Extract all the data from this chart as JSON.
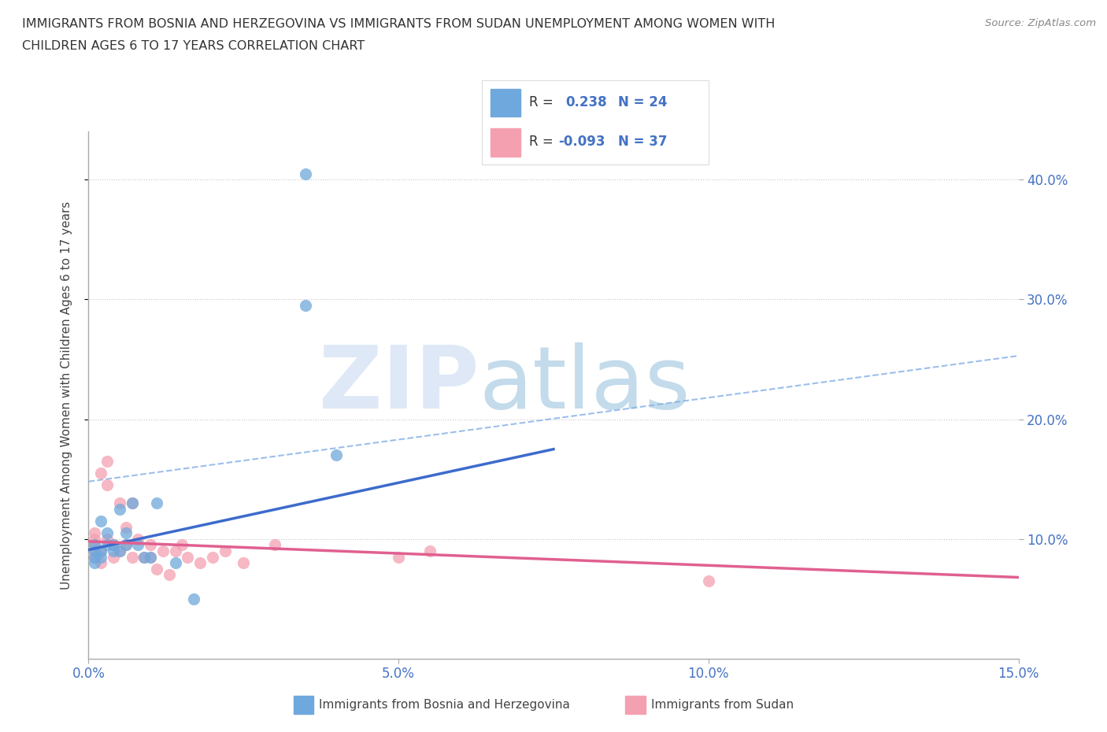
{
  "title_line1": "IMMIGRANTS FROM BOSNIA AND HERZEGOVINA VS IMMIGRANTS FROM SUDAN UNEMPLOYMENT AMONG WOMEN WITH",
  "title_line2": "CHILDREN AGES 6 TO 17 YEARS CORRELATION CHART",
  "source": "Source: ZipAtlas.com",
  "xlabel_bosnia": "Immigrants from Bosnia and Herzegovina",
  "xlabel_sudan": "Immigrants from Sudan",
  "ylabel": "Unemployment Among Women with Children Ages 6 to 17 years",
  "xlim": [
    0.0,
    0.15
  ],
  "ylim": [
    0.0,
    0.44
  ],
  "xticks": [
    0.0,
    0.05,
    0.1,
    0.15
  ],
  "yticks": [
    0.1,
    0.2,
    0.3,
    0.4
  ],
  "ytick_labels": [
    "10.0%",
    "20.0%",
    "30.0%",
    "40.0%"
  ],
  "xtick_labels": [
    "0.0%",
    "5.0%",
    "10.0%",
    "15.0%"
  ],
  "R_bosnia": 0.238,
  "N_bosnia": 24,
  "R_sudan": -0.093,
  "N_sudan": 37,
  "color_bosnia": "#6fa8dc",
  "color_sudan": "#f4a0b0",
  "color_bosnia_line": "#3d6bcc",
  "color_sudan_line": "#e06090",
  "color_ci_line": "#8ab4e8",
  "color_text_blue": "#4472c4",
  "background_color": "#ffffff",
  "grid_color": "#c8c8c8",
  "bosnia_x": [
    0.001,
    0.001,
    0.001,
    0.001,
    0.002,
    0.002,
    0.002,
    0.003,
    0.003,
    0.004,
    0.004,
    0.005,
    0.005,
    0.006,
    0.006,
    0.007,
    0.008,
    0.009,
    0.01,
    0.011,
    0.014,
    0.017,
    0.035,
    0.04
  ],
  "bosnia_y": [
    0.08,
    0.085,
    0.09,
    0.095,
    0.085,
    0.09,
    0.115,
    0.095,
    0.105,
    0.09,
    0.095,
    0.09,
    0.125,
    0.095,
    0.105,
    0.13,
    0.095,
    0.085,
    0.085,
    0.13,
    0.08,
    0.05,
    0.295,
    0.17
  ],
  "bosnia_outlier_x": [
    0.035
  ],
  "bosnia_outlier_y": [
    0.405
  ],
  "sudan_x": [
    0.001,
    0.001,
    0.001,
    0.001,
    0.001,
    0.002,
    0.002,
    0.002,
    0.003,
    0.003,
    0.003,
    0.004,
    0.004,
    0.005,
    0.005,
    0.006,
    0.006,
    0.007,
    0.007,
    0.008,
    0.009,
    0.01,
    0.01,
    0.011,
    0.012,
    0.013,
    0.014,
    0.015,
    0.016,
    0.018,
    0.02,
    0.022,
    0.025,
    0.03,
    0.05,
    0.055,
    0.1
  ],
  "sudan_y": [
    0.085,
    0.09,
    0.095,
    0.1,
    0.105,
    0.08,
    0.09,
    0.155,
    0.1,
    0.145,
    0.165,
    0.085,
    0.095,
    0.09,
    0.13,
    0.095,
    0.11,
    0.085,
    0.13,
    0.1,
    0.085,
    0.095,
    0.085,
    0.075,
    0.09,
    0.07,
    0.09,
    0.095,
    0.085,
    0.08,
    0.085,
    0.09,
    0.08,
    0.095,
    0.085,
    0.09,
    0.065
  ],
  "bosnia_line_x0": 0.0,
  "bosnia_line_y0": 0.091,
  "bosnia_line_x1": 0.075,
  "bosnia_line_y1": 0.175,
  "sudan_line_x0": 0.0,
  "sudan_line_y0": 0.098,
  "sudan_line_x1": 0.15,
  "sudan_line_y1": 0.068,
  "ci_line_x0": 0.0,
  "ci_line_y0": 0.148,
  "ci_line_x1": 0.15,
  "ci_line_y1": 0.253
}
